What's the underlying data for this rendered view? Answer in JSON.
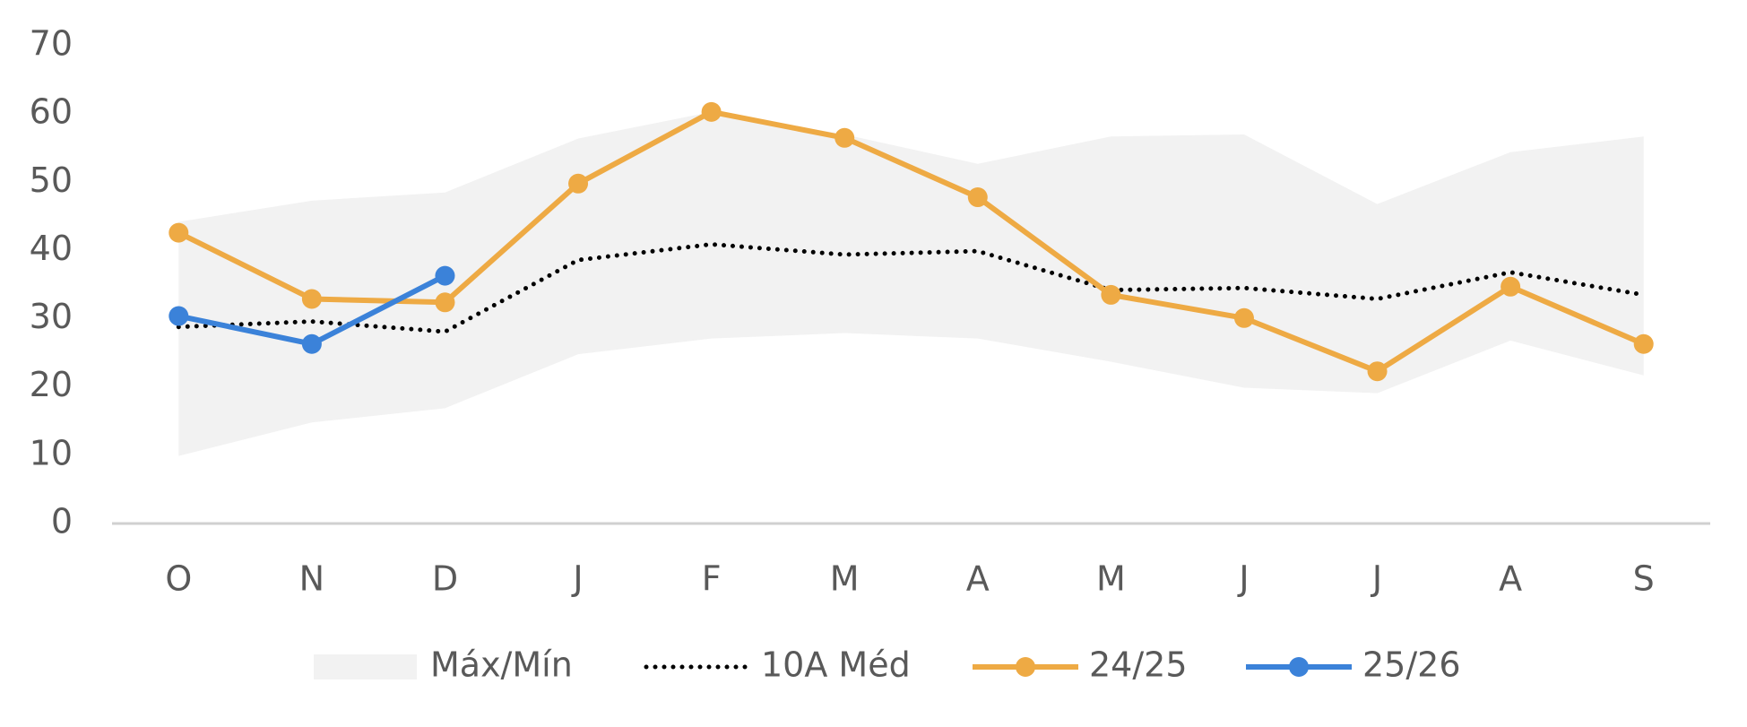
{
  "chart_data": {
    "type": "line",
    "categories": [
      "O",
      "N",
      "D",
      "J",
      "F",
      "M",
      "A",
      "M",
      "J",
      "J",
      "A",
      "S"
    ],
    "ylim": [
      0,
      70
    ],
    "yticks": [
      0,
      10,
      20,
      30,
      40,
      50,
      60,
      70
    ],
    "grid": false,
    "legend": "bottom",
    "series": [
      {
        "name": "Máx/Mín",
        "type": "area",
        "color": "#f2f2f2",
        "values": [
          44.2,
          47.3,
          48.5,
          56.4,
          60.3,
          57,
          52.7,
          56.7,
          57,
          46.8,
          54.4,
          56.7
        ],
        "lower": [
          9.9,
          14.8,
          16.9,
          24.8,
          27.1,
          27.9,
          27.1,
          23.7,
          19.9,
          19.1,
          26.8,
          21.7
        ]
      },
      {
        "name": "10A Méd",
        "type": "dotted",
        "color": "#000000",
        "values": [
          28.8,
          29.6,
          28.1,
          38.6,
          40.9,
          39.4,
          39.9,
          34.2,
          34.5,
          32.9,
          36.8,
          33.5
        ]
      },
      {
        "name": "24/25",
        "type": "marker-line",
        "color": "#eeaa44",
        "values": [
          42.6,
          32.9,
          32.4,
          49.8,
          60.3,
          56.5,
          47.8,
          33.5,
          30.1,
          22.3,
          34.7,
          26.3
        ]
      },
      {
        "name": "25/26",
        "type": "marker-line",
        "color": "#3b82d9",
        "values": [
          30.4,
          26.3,
          36.3,
          null,
          null,
          null,
          null,
          null,
          null,
          null,
          null,
          null
        ]
      }
    ]
  }
}
